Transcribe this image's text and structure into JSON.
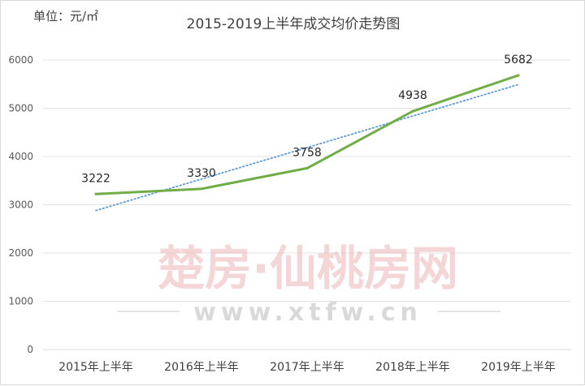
{
  "header": {
    "unit": "单位：元/㎡",
    "title": "2015-2019上半年成交均价走势图"
  },
  "watermark": {
    "brand": "楚房·仙桃房网",
    "site": "www.xtfw.cn",
    "color": "#e8a3a3"
  },
  "chart_data": {
    "type": "line",
    "title": "2015-2019上半年成交均价走势图",
    "xlabel": "",
    "ylabel": "单位：元/㎡",
    "categories": [
      "2015年上半年",
      "2016年上半年",
      "2017年上半年",
      "2018年上半年",
      "2019年上半年"
    ],
    "series": [
      {
        "values": [
          3222,
          3330,
          3758,
          4938,
          5682
        ],
        "color": "#70ad47",
        "data_labels": true
      }
    ],
    "trendline": {
      "type": "linear",
      "color": "#5b9bd5",
      "style": "dotted"
    },
    "ylim": [
      0,
      6000
    ],
    "yticks": [
      0,
      1000,
      2000,
      3000,
      4000,
      5000,
      6000
    ],
    "grid": true,
    "legend": "none"
  }
}
